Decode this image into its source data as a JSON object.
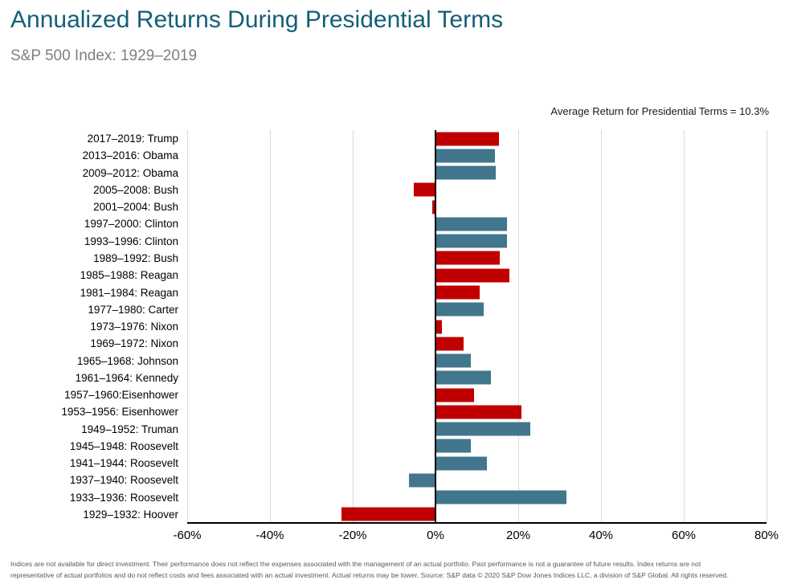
{
  "chart_data": {
    "type": "bar",
    "orientation": "horizontal",
    "title": "Annualized Returns During Presidential Terms",
    "subtitle": "S&P 500 Index: 1929–2019",
    "annotation": "Average Return for Presidential Terms = 10.3%",
    "average_return_pct": 10.3,
    "unit": "%",
    "xlim": [
      -60,
      80
    ],
    "grid": true,
    "x_ticks": [
      {
        "value": -60,
        "label": "-60%"
      },
      {
        "value": -40,
        "label": "-40%"
      },
      {
        "value": -20,
        "label": "-20%"
      },
      {
        "value": 0,
        "label": "0%"
      },
      {
        "value": 20,
        "label": "20%"
      },
      {
        "value": 40,
        "label": "40%"
      },
      {
        "value": 60,
        "label": "60%"
      },
      {
        "value": 80,
        "label": "80%"
      }
    ],
    "colors": {
      "R": "#c00000",
      "D": "#41768c"
    },
    "terms": [
      {
        "label": "2017–2019: Trump",
        "president": "Trump",
        "party": "R",
        "value": 15.3
      },
      {
        "label": "2013–2016: Obama",
        "president": "Obama",
        "party": "D",
        "value": 14.3
      },
      {
        "label": "2009–2012: Obama",
        "president": "Obama",
        "party": "D",
        "value": 14.6
      },
      {
        "label": "2005–2008: Bush",
        "president": "Bush",
        "party": "R",
        "value": -5.2
      },
      {
        "label": "2001–2004: Bush",
        "president": "Bush",
        "party": "R",
        "value": -0.7
      },
      {
        "label": "1997–2000: Clinton",
        "president": "Clinton",
        "party": "D",
        "value": 17.3
      },
      {
        "label": "1993–1996: Clinton",
        "president": "Clinton",
        "party": "D",
        "value": 17.2
      },
      {
        "label": "1989–1992: Bush",
        "president": "Bush",
        "party": "R",
        "value": 15.6
      },
      {
        "label": "1985–1988: Reagan",
        "president": "Reagan",
        "party": "R",
        "value": 17.8
      },
      {
        "label": "1981–1984: Reagan",
        "president": "Reagan",
        "party": "R",
        "value": 10.6
      },
      {
        "label": "1977–1980: Carter",
        "president": "Carter",
        "party": "D",
        "value": 11.6
      },
      {
        "label": "1973–1976: Nixon",
        "president": "Nixon",
        "party": "R",
        "value": 1.6
      },
      {
        "label": "1969–1972: Nixon",
        "president": "Nixon",
        "party": "R",
        "value": 6.7
      },
      {
        "label": "1965–1968: Johnson",
        "president": "Johnson",
        "party": "D",
        "value": 8.6
      },
      {
        "label": "1961–1964: Kennedy",
        "president": "Kennedy",
        "party": "D",
        "value": 13.4
      },
      {
        "label": "1957–1960:Eisenhower",
        "president": "Eisenhower",
        "party": "R",
        "value": 9.4
      },
      {
        "label": "1953–1956: Eisenhower",
        "president": "Eisenhower",
        "party": "R",
        "value": 20.7
      },
      {
        "label": "1949–1952: Truman",
        "president": "Truman",
        "party": "D",
        "value": 23.0
      },
      {
        "label": "1945–1948: Roosevelt",
        "president": "Roosevelt",
        "party": "D",
        "value": 8.6
      },
      {
        "label": "1941–1944: Roosevelt",
        "president": "Roosevelt",
        "party": "D",
        "value": 12.5
      },
      {
        "label": "1937–1940: Roosevelt",
        "president": "Roosevelt",
        "party": "D",
        "value": -6.4
      },
      {
        "label": "1933–1936: Roosevelt",
        "president": "Roosevelt",
        "party": "D",
        "value": 31.6
      },
      {
        "label": "1929–1932: Hoover",
        "president": "Hoover",
        "party": "R",
        "value": -22.7
      }
    ]
  },
  "footer": {
    "line1": "Indices are not available for direct investment. Their performance does not reflect the expenses associated with the management of an actual portfolio. Past performance is not a guarantee of future results. Index returns are not",
    "line2": "representative of actual portfolios and do not reflect costs and fees associated with an actual investment. Actual returns may be lower. Source: S&P data © 2020 S&P Dow Jones Indices LLC, a division of S&P Global. All rights reserved."
  }
}
